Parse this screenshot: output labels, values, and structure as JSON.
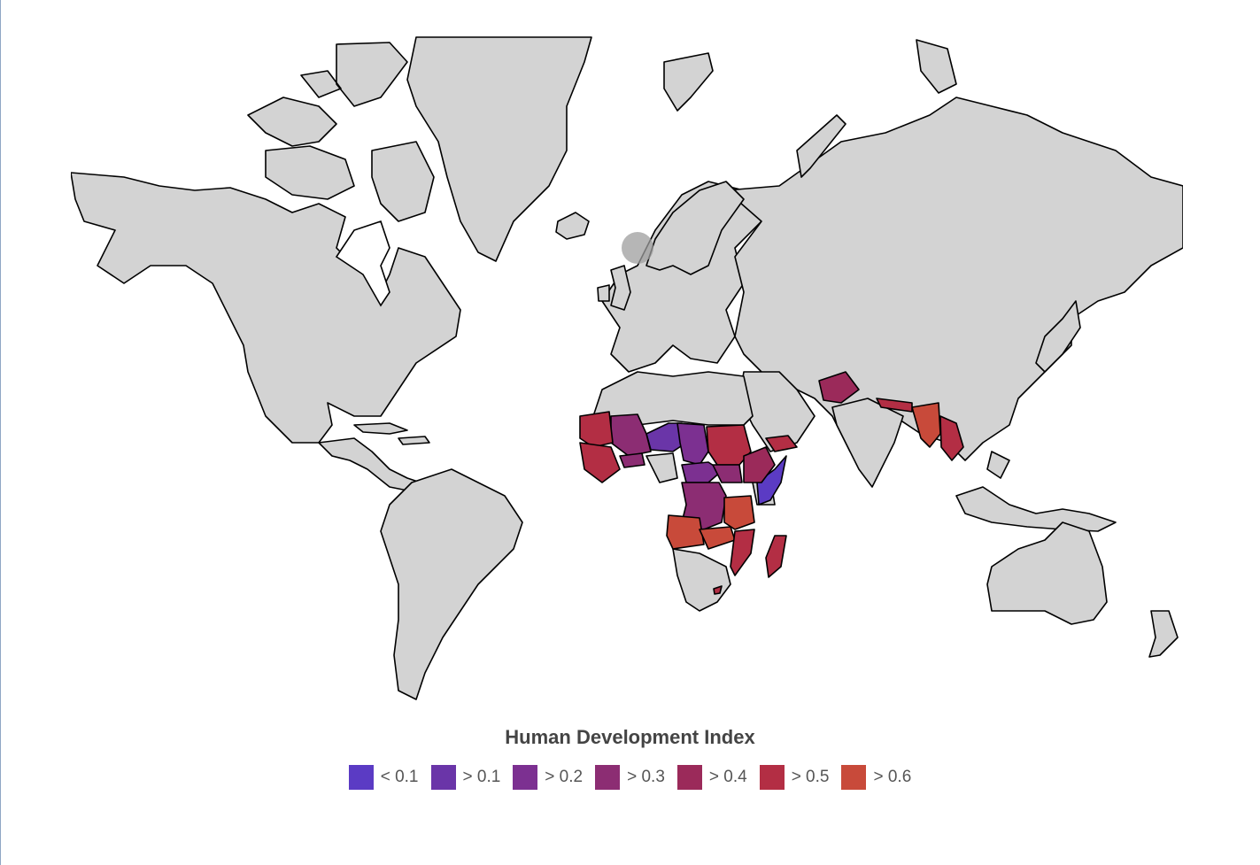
{
  "legend": {
    "title": "Human Development Index",
    "items": [
      {
        "label": "< 0.1",
        "color": "#5b3bc4"
      },
      {
        "label": "> 0.1",
        "color": "#6a35a8"
      },
      {
        "label": "> 0.2",
        "color": "#7c3091"
      },
      {
        "label": "> 0.3",
        "color": "#8c2d73"
      },
      {
        "label": "> 0.4",
        "color": "#9b2a5a"
      },
      {
        "label": "> 0.5",
        "color": "#b32e44"
      },
      {
        "label": "> 0.6",
        "color": "#c84a3a"
      }
    ]
  },
  "map": {
    "no_data_color": "#d3d3d3",
    "regions": [
      {
        "name": "Somalia",
        "bin": "< 0.1"
      },
      {
        "name": "Niger",
        "bin": "> 0.1"
      },
      {
        "name": "Chad",
        "bin": "> 0.2"
      },
      {
        "name": "Central African Republic",
        "bin": "> 0.2"
      },
      {
        "name": "Mali",
        "bin": "> 0.3"
      },
      {
        "name": "DR Congo",
        "bin": "> 0.3"
      },
      {
        "name": "South Sudan",
        "bin": "> 0.3"
      },
      {
        "name": "Burkina Faso",
        "bin": "> 0.3"
      },
      {
        "name": "Afghanistan",
        "bin": "> 0.4"
      },
      {
        "name": "Ethiopia",
        "bin": "> 0.4"
      },
      {
        "name": "Sudan",
        "bin": "> 0.5"
      },
      {
        "name": "Mozambique",
        "bin": "> 0.5"
      },
      {
        "name": "Madagascar",
        "bin": "> 0.5"
      },
      {
        "name": "Angola",
        "bin": "> 0.6"
      },
      {
        "name": "Myanmar",
        "bin": "> 0.6"
      },
      {
        "name": "Tanzania",
        "bin": "> 0.6"
      }
    ]
  }
}
